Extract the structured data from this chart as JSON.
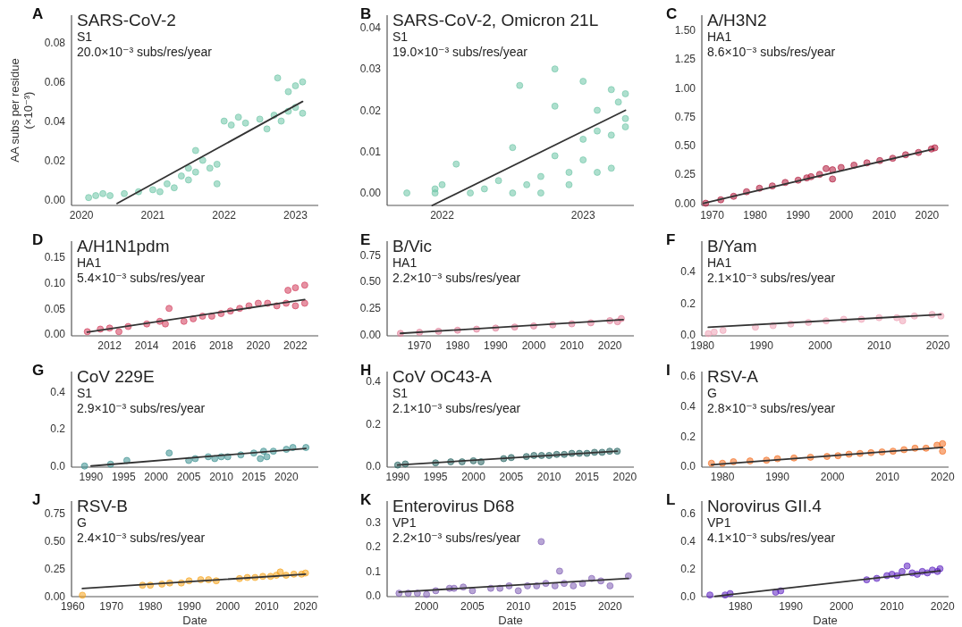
{
  "chart_data": [
    {
      "type": "scatter",
      "title": "SARS-CoV-2",
      "subtitle": "S1",
      "annotations": [
        "A",
        "20.0×10⁻³ subs/res/year"
      ],
      "ylabel": "AA subs per residue\n(×10⁻³)",
      "xlim": [
        2019.86,
        2023.32
      ],
      "xticks": [
        2020,
        2021,
        2022,
        2023
      ],
      "ylim": [
        -0.003,
        0.094
      ],
      "yticks": [
        {
          "value": 0,
          "label": "0.00"
        },
        {
          "value": 0.02,
          "label": "0.02"
        },
        {
          "value": 0.04,
          "label": "0.04"
        },
        {
          "value": 0.06,
          "label": "0.06"
        },
        {
          "value": 0.08,
          "label": "0.08"
        }
      ],
      "series": [
        {
          "marker": "circle",
          "color": "#6cc5a5",
          "x": [
            2020.1,
            2020.2,
            2020.3,
            2020.4,
            2020.6,
            2020.8,
            2021.0,
            2021.1,
            2021.2,
            2021.3,
            2021.4,
            2021.5,
            2021.5,
            2021.6,
            2021.6,
            2021.7,
            2021.8,
            2021.9,
            2021.9,
            2022.0,
            2022.1,
            2022.2,
            2022.3,
            2022.5,
            2022.6,
            2022.7,
            2022.75,
            2022.8,
            2022.9,
            2023.0,
            2022.9,
            2023.0,
            2023.1,
            2023.1
          ],
          "values": [
            0.001,
            0.002,
            0.003,
            0.002,
            0.003,
            0.004,
            0.005,
            0.004,
            0.008,
            0.006,
            0.012,
            0.01,
            0.016,
            0.014,
            0.025,
            0.02,
            0.016,
            0.018,
            0.008,
            0.04,
            0.038,
            0.042,
            0.039,
            0.041,
            0.036,
            0.043,
            0.062,
            0.04,
            0.045,
            0.047,
            0.055,
            0.058,
            0.06,
            0.044
          ]
        },
        {
          "type": "line",
          "marker": "none",
          "color": "#333333",
          "x": [
            2020.5,
            2023.1
          ],
          "values": [
            -0.002,
            0.05
          ]
        }
      ]
    },
    {
      "type": "scatter",
      "title": "SARS-CoV-2, Omicron 21L",
      "subtitle": "S1",
      "annotations": [
        "B",
        "19.0×10⁻³ subs/res/year"
      ],
      "xlim": [
        2021.61,
        2023.36
      ],
      "xticks": [
        2022,
        2023
      ],
      "ylim": [
        -0.003,
        0.043
      ],
      "yticks": [
        {
          "value": 0,
          "label": "0.00"
        },
        {
          "value": 0.01,
          "label": "0.01"
        },
        {
          "value": 0.02,
          "label": "0.02"
        },
        {
          "value": 0.03,
          "label": "0.03"
        },
        {
          "value": 0.04,
          "label": "0.04"
        }
      ],
      "series": [
        {
          "marker": "circle",
          "color": "#6cc5a5",
          "x": [
            2021.75,
            2021.95,
            2022.2,
            2022.5,
            2022.7,
            2021.95,
            2022.3,
            2022.6,
            2022.0,
            2022.4,
            2022.9,
            2022.7,
            2022.9,
            2023.1,
            2023.2,
            2023.0,
            2022.8,
            2023.0,
            2023.1,
            2023.2,
            2023.3,
            2023.1,
            2023.25,
            2023.3,
            2023.2,
            2023.0,
            2022.8,
            2022.55,
            2023.3,
            2022.1,
            2022.5,
            2022.8
          ],
          "values": [
            0,
            0,
            0,
            0,
            0,
            0.001,
            0.001,
            0.002,
            0.002,
            0.003,
            0.002,
            0.004,
            0.005,
            0.005,
            0.006,
            0.008,
            0.009,
            0.013,
            0.015,
            0.014,
            0.018,
            0.02,
            0.022,
            0.024,
            0.025,
            0.027,
            0.03,
            0.026,
            0.016,
            0.007,
            0.011,
            0.021
          ]
        },
        {
          "type": "line",
          "marker": "none",
          "color": "#333333",
          "x": [
            2021.93,
            2023.3
          ],
          "values": [
            -0.003,
            0.02
          ]
        }
      ]
    },
    {
      "type": "scatter",
      "title": "A/H3N2",
      "subtitle": "HA1",
      "annotations": [
        "C",
        "8.6×10⁻³ subs/res/year"
      ],
      "xlim": [
        1967.6,
        2025
      ],
      "xticks": [
        1970,
        1980,
        1990,
        2000,
        2010,
        2020
      ],
      "ylim": [
        -0.019,
        1.63
      ],
      "yticks": [
        {
          "value": 0,
          "label": "0.00"
        },
        {
          "value": 0.25,
          "label": "0.25"
        },
        {
          "value": 0.5,
          "label": "0.50"
        },
        {
          "value": 0.75,
          "label": "0.75"
        },
        {
          "value": 1,
          "label": "1.00"
        },
        {
          "value": 1.25,
          "label": "1.25"
        },
        {
          "value": 1.5,
          "label": "1.50"
        }
      ],
      "series": [
        {
          "marker": "circle",
          "color": "#b0183b",
          "x": [
            1968.5,
            1972,
            1975,
            1978,
            1981,
            1984,
            1987,
            1990,
            1993,
            1995,
            1996.5,
            1998,
            2000,
            2003,
            2006,
            2009,
            2012,
            2015,
            2018,
            2021,
            2021.8,
            1992,
            1998
          ],
          "values": [
            0.0,
            0.03,
            0.06,
            0.1,
            0.13,
            0.15,
            0.18,
            0.2,
            0.23,
            0.25,
            0.3,
            0.29,
            0.31,
            0.33,
            0.35,
            0.37,
            0.39,
            0.42,
            0.44,
            0.47,
            0.48,
            0.22,
            0.21
          ]
        },
        {
          "type": "line",
          "marker": "none",
          "color": "#333333",
          "x": [
            1968,
            2021.5
          ],
          "values": [
            0.0,
            0.47
          ]
        }
      ]
    },
    {
      "type": "scatter",
      "title": "A/H1N1pdm",
      "subtitle": "HA1",
      "annotations": [
        "D",
        "5.4×10⁻³ subs/res/year"
      ],
      "xlim": [
        2009.95,
        2023.23
      ],
      "xticks": [
        2012,
        2014,
        2016,
        2018,
        2020,
        2022
      ],
      "ylim": [
        -0.003,
        0.18
      ],
      "yticks": [
        {
          "value": 0,
          "label": "0.00"
        },
        {
          "value": 0.05,
          "label": "0.05"
        },
        {
          "value": 0.1,
          "label": "0.10"
        },
        {
          "value": 0.15,
          "label": "0.15"
        }
      ],
      "series": [
        {
          "marker": "circle",
          "color": "#d23a5a",
          "x": [
            2010.8,
            2011.5,
            2012,
            2012.5,
            2013,
            2014,
            2014.7,
            2015.2,
            2015,
            2016,
            2016.5,
            2017,
            2017.5,
            2018,
            2018.5,
            2019,
            2019.5,
            2020,
            2020.5,
            2021,
            2021.5,
            2022,
            2022.5,
            2021.6,
            2022,
            2022.5
          ],
          "values": [
            0.005,
            0.01,
            0.012,
            0.005,
            0.015,
            0.02,
            0.025,
            0.05,
            0.02,
            0.025,
            0.03,
            0.035,
            0.035,
            0.04,
            0.045,
            0.05,
            0.055,
            0.06,
            0.06,
            0.055,
            0.06,
            0.055,
            0.06,
            0.085,
            0.09,
            0.095
          ]
        },
        {
          "type": "line",
          "marker": "none",
          "color": "#333333",
          "x": [
            2010.8,
            2022.5
          ],
          "values": [
            0.004,
            0.067
          ]
        }
      ]
    },
    {
      "type": "scatter",
      "title": "B/Vic",
      "subtitle": "HA1",
      "annotations": [
        "E",
        "2.2×10⁻³ subs/res/year"
      ],
      "xlim": [
        1961.5,
        2026.3
      ],
      "xticks": [
        1970,
        1980,
        1990,
        2000,
        2010,
        2020
      ],
      "ylim": [
        -0.013,
        0.88
      ],
      "yticks": [
        {
          "value": 0,
          "label": "0.00"
        },
        {
          "value": 0.25,
          "label": "0.25"
        },
        {
          "value": 0.5,
          "label": "0.50"
        },
        {
          "value": 0.75,
          "label": "0.75"
        }
      ],
      "series": [
        {
          "marker": "circle",
          "color": "#e07a95",
          "x": [
            1965,
            1970,
            1975,
            1980,
            1985,
            1990,
            1995,
            2000,
            2005,
            2010,
            2015,
            2020,
            2023,
            2022
          ],
          "values": [
            0.01,
            0.02,
            0.03,
            0.04,
            0.05,
            0.06,
            0.07,
            0.08,
            0.09,
            0.1,
            0.11,
            0.13,
            0.15,
            0.12
          ]
        },
        {
          "type": "line",
          "marker": "none",
          "color": "#333333",
          "x": [
            1965,
            2023.5
          ],
          "values": [
            0.01,
            0.14
          ]
        }
      ]
    },
    {
      "type": "scatter",
      "title": "B/Yam",
      "subtitle": "HA1",
      "annotations": [
        "F",
        "2.1×10⁻³ subs/res/year"
      ],
      "xlim": [
        1979.9,
        2021.8
      ],
      "xticks": [
        1980,
        1990,
        2000,
        2010,
        2020
      ],
      "ylim": [
        -0.004,
        0.59
      ],
      "yticks": [
        {
          "value": 0,
          "label": "0.0"
        },
        {
          "value": 0.2,
          "label": "0.2"
        },
        {
          "value": 0.4,
          "label": "0.4"
        }
      ],
      "series": [
        {
          "marker": "circle",
          "color": "#eea0b5",
          "x": [
            1981,
            1982,
            1983.5,
            1989,
            1992,
            1995,
            1998,
            2001,
            2004,
            2007,
            2010,
            2013,
            2016,
            2019,
            2020.5,
            2014
          ],
          "values": [
            0.01,
            0.02,
            0.03,
            0.05,
            0.06,
            0.07,
            0.08,
            0.09,
            0.1,
            0.1,
            0.11,
            0.11,
            0.12,
            0.13,
            0.12,
            0.09
          ]
        },
        {
          "type": "line",
          "marker": "none",
          "color": "#333333",
          "x": [
            1981,
            2020.5
          ],
          "values": [
            0.05,
            0.13
          ]
        }
      ]
    },
    {
      "type": "scatter",
      "title": "CoV 229E",
      "subtitle": "S1",
      "annotations": [
        "G",
        "2.9×10⁻³ subs/res/year"
      ],
      "xlim": [
        1987.0,
        2024.9
      ],
      "xticks": [
        1990,
        1995,
        2000,
        2005,
        2010,
        2015,
        2020
      ],
      "ylim": [
        -0.006,
        0.51
      ],
      "yticks": [
        {
          "value": 0,
          "label": "0.0"
        },
        {
          "value": 0.2,
          "label": "0.2"
        },
        {
          "value": 0.4,
          "label": "0.4"
        }
      ],
      "series": [
        {
          "marker": "circle",
          "color": "#3a8f8f",
          "x": [
            1989,
            1993,
            1995.5,
            2002,
            2005,
            2006,
            2008,
            2009,
            2010,
            2011,
            2013,
            2015,
            2016,
            2016.5,
            2017,
            2018,
            2020,
            2021,
            2023
          ],
          "values": [
            0.0,
            0.01,
            0.03,
            0.07,
            0.03,
            0.04,
            0.05,
            0.04,
            0.05,
            0.05,
            0.06,
            0.07,
            0.04,
            0.08,
            0.05,
            0.08,
            0.09,
            0.1,
            0.1
          ]
        },
        {
          "type": "line",
          "marker": "none",
          "color": "#333333",
          "x": [
            1990,
            2023
          ],
          "values": [
            0.0,
            0.095
          ]
        }
      ]
    },
    {
      "type": "scatter",
      "title": "CoV OC43-A",
      "subtitle": "S1",
      "annotations": [
        "H",
        "2.1×10⁻³ subs/res/year"
      ],
      "xlim": [
        1988.6,
        2021.2
      ],
      "xticks": [
        1990,
        1995,
        2000,
        2005,
        2010,
        2015,
        2020
      ],
      "ylim": [
        -0.005,
        0.446
      ],
      "yticks": [
        {
          "value": 0,
          "label": "0.0"
        },
        {
          "value": 0.2,
          "label": "0.2"
        },
        {
          "value": 0.4,
          "label": "0.4"
        }
      ],
      "series": [
        {
          "marker": "circle",
          "color": "#23615e",
          "x": [
            1990,
            1991,
            1995,
            1997,
            1998.5,
            2000,
            2001,
            2004,
            2005,
            2007,
            2008,
            2009,
            2010,
            2011,
            2012,
            2013,
            2014,
            2015,
            2016,
            2017,
            2018,
            2019
          ],
          "values": [
            0.005,
            0.01,
            0.015,
            0.02,
            0.02,
            0.025,
            0.02,
            0.035,
            0.04,
            0.045,
            0.05,
            0.05,
            0.05,
            0.055,
            0.055,
            0.06,
            0.06,
            0.06,
            0.065,
            0.065,
            0.07,
            0.07
          ]
        },
        {
          "type": "line",
          "marker": "none",
          "color": "#333333",
          "x": [
            1990,
            2019
          ],
          "values": [
            0.005,
            0.07
          ]
        }
      ]
    },
    {
      "type": "scatter",
      "title": "RSV-A",
      "subtitle": "G",
      "annotations": [
        "I",
        "2.8×10⁻³ subs/res/year"
      ],
      "xlim": [
        1976.25,
        2021.1
      ],
      "xticks": [
        1980,
        1990,
        2000,
        2010,
        2020
      ],
      "ylim": [
        -0.006,
        0.63
      ],
      "yticks": [
        {
          "value": 0,
          "label": "0.0"
        },
        {
          "value": 0.2,
          "label": "0.2"
        },
        {
          "value": 0.4,
          "label": "0.4"
        },
        {
          "value": 0.6,
          "label": "0.6"
        }
      ],
      "series": [
        {
          "marker": "circle",
          "color": "#f26b1d",
          "x": [
            1978,
            1980,
            1982,
            1985,
            1988,
            1990,
            1993,
            1996,
            1999,
            2001,
            2003,
            2005,
            2007,
            2009,
            2011,
            2013,
            2015,
            2017,
            2019,
            2020,
            2020
          ],
          "values": [
            0.02,
            0.02,
            0.03,
            0.035,
            0.04,
            0.05,
            0.055,
            0.06,
            0.065,
            0.07,
            0.08,
            0.085,
            0.09,
            0.095,
            0.1,
            0.11,
            0.12,
            0.12,
            0.14,
            0.15,
            0.1
          ]
        },
        {
          "type": "line",
          "marker": "none",
          "color": "#333333",
          "x": [
            1978,
            2020
          ],
          "values": [
            0.01,
            0.125
          ]
        }
      ]
    },
    {
      "type": "scatter",
      "title": "RSV-B",
      "subtitle": "G",
      "annotations": [
        "J",
        "2.4×10⁻³ subs/res/year"
      ],
      "xlabel": "Date",
      "xlim": [
        1959.7,
        2023.3
      ],
      "xticks": [
        1960,
        1970,
        1980,
        1990,
        2000,
        2010,
        2020
      ],
      "ylim": [
        -0.003,
        0.86
      ],
      "yticks": [
        {
          "value": 0,
          "label": "0.00"
        },
        {
          "value": 0.25,
          "label": "0.25"
        },
        {
          "value": 0.5,
          "label": "0.50"
        },
        {
          "value": 0.75,
          "label": "0.75"
        }
      ],
      "series": [
        {
          "marker": "circle",
          "color": "#f5a31a",
          "x": [
            1962.5,
            1978,
            1980,
            1983,
            1985,
            1988,
            1990,
            1993,
            1995,
            1997,
            2003,
            2005,
            2007,
            2009,
            2011,
            2012.5,
            2013.5,
            2015,
            2017,
            2019,
            2020
          ],
          "values": [
            0.01,
            0.1,
            0.1,
            0.11,
            0.12,
            0.12,
            0.14,
            0.15,
            0.15,
            0.14,
            0.16,
            0.17,
            0.17,
            0.18,
            0.18,
            0.19,
            0.22,
            0.19,
            0.2,
            0.2,
            0.21
          ]
        },
        {
          "type": "line",
          "marker": "none",
          "color": "#333333",
          "x": [
            1962.5,
            2020
          ],
          "values": [
            0.07,
            0.2
          ]
        }
      ]
    },
    {
      "type": "scatter",
      "title": "Enterovirus D68",
      "subtitle": "VP1",
      "annotations": [
        "K",
        "2.2×10⁻³ subs/res/year"
      ],
      "xlabel": "Date",
      "xlim": [
        1995.7,
        2022.6
      ],
      "xticks": [
        2000,
        2005,
        2010,
        2015,
        2020
      ],
      "ylim": [
        -0.004,
        0.385
      ],
      "yticks": [
        {
          "value": 0,
          "label": "0.0"
        },
        {
          "value": 0.1,
          "label": "0.1"
        },
        {
          "value": 0.2,
          "label": "0.2"
        },
        {
          "value": 0.3,
          "label": "0.3"
        }
      ],
      "series": [
        {
          "marker": "circle",
          "color": "#7e5cb3",
          "x": [
            1997,
            1998,
            1999,
            2000,
            2001,
            2002.5,
            2003,
            2004,
            2005,
            2007,
            2008,
            2009,
            2010,
            2011,
            2012.5,
            2012,
            2013,
            2014,
            2014.5,
            2015,
            2016,
            2017,
            2018,
            2019,
            2020,
            2022
          ],
          "values": [
            0.01,
            0.01,
            0.01,
            0.005,
            0.02,
            0.03,
            0.03,
            0.035,
            0.02,
            0.03,
            0.03,
            0.04,
            0.02,
            0.04,
            0.22,
            0.04,
            0.05,
            0.04,
            0.1,
            0.05,
            0.04,
            0.05,
            0.07,
            0.06,
            0.04,
            0.08
          ]
        },
        {
          "type": "line",
          "marker": "none",
          "color": "#333333",
          "x": [
            1997,
            2022
          ],
          "values": [
            0.015,
            0.07
          ]
        }
      ]
    },
    {
      "type": "scatter",
      "title": "Norovirus GII.4",
      "subtitle": "VP1",
      "annotations": [
        "L",
        "4.1×10⁻³ subs/res/year"
      ],
      "xlabel": "Date",
      "xlim": [
        1972.4,
        2021.2
      ],
      "xticks": [
        1980,
        1990,
        2000,
        2010,
        2020
      ],
      "ylim": [
        -0.002,
        0.69
      ],
      "yticks": [
        {
          "value": 0,
          "label": "0.0"
        },
        {
          "value": 0.2,
          "label": "0.2"
        },
        {
          "value": 0.4,
          "label": "0.4"
        },
        {
          "value": 0.6,
          "label": "0.6"
        }
      ],
      "series": [
        {
          "marker": "circle",
          "color": "#5b1fc0",
          "x": [
            1974,
            1977,
            1978,
            1987,
            1988,
            2005,
            2007,
            2009,
            2010,
            2011,
            2012,
            2013,
            2014,
            2015,
            2016,
            2017,
            2018,
            2019,
            2019.5
          ],
          "values": [
            0.01,
            0.01,
            0.02,
            0.03,
            0.04,
            0.12,
            0.13,
            0.15,
            0.16,
            0.15,
            0.18,
            0.22,
            0.17,
            0.16,
            0.18,
            0.17,
            0.19,
            0.18,
            0.2
          ]
        },
        {
          "type": "line",
          "marker": "none",
          "color": "#333333",
          "x": [
            1975,
            2019.5
          ],
          "values": [
            0.0,
            0.185
          ]
        }
      ]
    }
  ]
}
